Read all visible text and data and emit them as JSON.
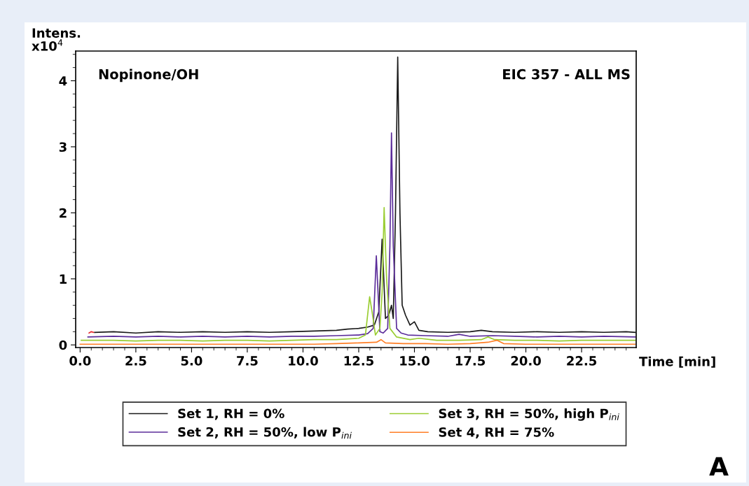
{
  "chart_data": {
    "type": "line",
    "xlabel": "Time [min]",
    "ylabel": "Intens.\nx10$^{4}$",
    "xlim": [
      -0.2,
      24.95
    ],
    "xticks": [
      {
        "value": 0,
        "label": "0.0"
      },
      {
        "value": 2.5,
        "label": "2.5"
      },
      {
        "value": 5,
        "label": "5.0"
      },
      {
        "value": 7.5,
        "label": "7.5"
      },
      {
        "value": 10,
        "label": "10.0"
      },
      {
        "value": 12.5,
        "label": "12.5"
      },
      {
        "value": 15,
        "label": "15.0"
      },
      {
        "value": 17.5,
        "label": "17.5"
      },
      {
        "value": 20,
        "label": "20.0"
      },
      {
        "value": 22.5,
        "label": "22.5"
      }
    ],
    "ylim": [
      -0.04,
      4.45
    ],
    "yticks": [
      0,
      1,
      2,
      3,
      4
    ],
    "grid": false,
    "legend": "bottom",
    "marker": "none",
    "line_style": "solid",
    "annotations": [
      "Nopinone/OH",
      "EIC 357 - ALL MS",
      "A"
    ],
    "series": [
      {
        "name": "Set 1, RH = 0%",
        "color": "#1a1a1a",
        "x": [
          0.65,
          1.5,
          2.5,
          3.5,
          4.5,
          5.5,
          6.5,
          7.5,
          8.5,
          9.5,
          10.5,
          11.5,
          12.0,
          12.5,
          12.9,
          13.2,
          13.4,
          13.55,
          13.7,
          13.85,
          13.97,
          14.05,
          14.15,
          14.25,
          14.35,
          14.45,
          14.6,
          14.8,
          15.0,
          15.2,
          15.6,
          16.5,
          17.5,
          18.0,
          18.5,
          19.5,
          20.5,
          21.5,
          22.5,
          23.5,
          24.5,
          24.9
        ],
        "values": [
          0.19,
          0.2,
          0.18,
          0.2,
          0.19,
          0.2,
          0.19,
          0.2,
          0.19,
          0.2,
          0.21,
          0.22,
          0.24,
          0.25,
          0.27,
          0.3,
          0.5,
          1.6,
          0.4,
          0.45,
          0.6,
          0.4,
          2.0,
          4.36,
          2.0,
          0.6,
          0.45,
          0.3,
          0.35,
          0.22,
          0.2,
          0.19,
          0.2,
          0.22,
          0.2,
          0.19,
          0.2,
          0.19,
          0.2,
          0.19,
          0.2,
          0.19
        ]
      },
      {
        "name": "Set 2, RH = 50%, low P$_{ini}$",
        "color": "#5b2c9a",
        "x": [
          0.35,
          1.5,
          2.5,
          3.5,
          4.5,
          5.5,
          6.5,
          7.5,
          8.5,
          9.5,
          10.5,
          11.5,
          12.5,
          12.9,
          13.15,
          13.29,
          13.45,
          13.6,
          13.8,
          13.9,
          13.97,
          14.05,
          14.2,
          14.4,
          14.7,
          15.5,
          16.5,
          17.0,
          17.5,
          18.5,
          19.5,
          20.5,
          21.5,
          22.5,
          23.5,
          24.9
        ],
        "values": [
          0.12,
          0.13,
          0.12,
          0.13,
          0.12,
          0.13,
          0.12,
          0.13,
          0.12,
          0.13,
          0.13,
          0.14,
          0.15,
          0.17,
          0.25,
          1.35,
          0.2,
          0.18,
          0.25,
          1.5,
          3.21,
          1.5,
          0.25,
          0.18,
          0.15,
          0.14,
          0.13,
          0.16,
          0.13,
          0.14,
          0.13,
          0.12,
          0.13,
          0.12,
          0.13,
          0.12
        ]
      },
      {
        "name": "Set 3, RH = 50%, high P$_{ini}$",
        "color": "#9acd32",
        "x": [
          0.05,
          1.5,
          2.5,
          3.5,
          4.5,
          5.5,
          6.5,
          7.5,
          8.5,
          9.5,
          10.5,
          11.5,
          12.5,
          12.8,
          12.99,
          13.1,
          13.25,
          13.45,
          13.55,
          13.64,
          13.75,
          13.9,
          14.2,
          14.8,
          15.2,
          16.0,
          17.0,
          18.0,
          18.3,
          18.6,
          19.5,
          20.5,
          21.5,
          22.5,
          23.5,
          24.9
        ],
        "values": [
          0.07,
          0.07,
          0.06,
          0.07,
          0.07,
          0.06,
          0.07,
          0.07,
          0.06,
          0.07,
          0.08,
          0.08,
          0.1,
          0.15,
          0.73,
          0.5,
          0.15,
          0.25,
          0.8,
          2.08,
          1.0,
          0.25,
          0.12,
          0.08,
          0.1,
          0.07,
          0.07,
          0.08,
          0.12,
          0.08,
          0.07,
          0.07,
          0.06,
          0.07,
          0.07,
          0.07
        ]
      },
      {
        "name": "Set 4, RH = 75%",
        "color": "#ff7f27",
        "x": [
          0.0,
          1.5,
          2.5,
          3.5,
          4.5,
          5.5,
          6.5,
          7.5,
          8.5,
          9.5,
          10.5,
          11.5,
          12.5,
          13.3,
          13.5,
          13.7,
          14.5,
          15.5,
          16.5,
          17.5,
          18.3,
          18.7,
          19.0,
          20.0,
          21.0,
          22.0,
          23.0,
          24.0,
          24.9
        ],
        "values": [
          0.01,
          0.01,
          0.01,
          0.01,
          0.01,
          0.01,
          0.01,
          0.01,
          0.01,
          0.01,
          0.01,
          0.02,
          0.03,
          0.04,
          0.08,
          0.03,
          0.02,
          0.02,
          0.01,
          0.02,
          0.04,
          0.07,
          0.02,
          0.01,
          0.01,
          0.01,
          0.01,
          0.01,
          0.01
        ]
      },
      {
        "color": "#e8252a",
        "x": [
          0.4,
          0.5,
          0.6
        ],
        "values": [
          0.18,
          0.2,
          0.19
        ]
      }
    ]
  }
}
